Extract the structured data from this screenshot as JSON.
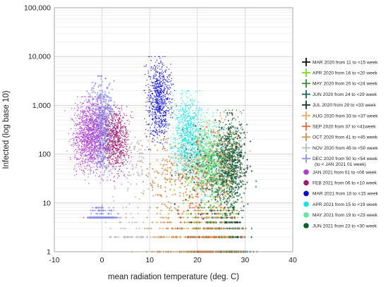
{
  "chart_data": {
    "type": "scatter",
    "title": "",
    "xlabel": "mean radiation temperature (deg. C)",
    "ylabel": "Infected (log base 10)",
    "x_scale": "linear",
    "y_scale": "log10",
    "xlim": [
      -10,
      40
    ],
    "ylim": [
      1,
      100000
    ],
    "x_ticks": [
      -10,
      0,
      10,
      20,
      30,
      40
    ],
    "x_tick_labels": [
      "-10",
      "0",
      "10",
      "20",
      "30",
      "40"
    ],
    "y_ticks": [
      1,
      10,
      100,
      1000,
      10000,
      100000
    ],
    "y_tick_labels": [
      "1",
      "10",
      "100",
      "1,000",
      "10,000",
      "100,000"
    ],
    "grid": true,
    "legend_position": "right",
    "series": [
      {
        "name": "MAR 2020 from 11 to <15 week",
        "color": "#111111",
        "marker": "plus",
        "x_range": [
          12,
          32
        ],
        "y_range": [
          1,
          500
        ],
        "approx_points": 200
      },
      {
        "name": "APR 2020 from 16 to <20 week",
        "color": "#7ddc1f",
        "marker": "plus",
        "x_range": [
          13,
          31
        ],
        "y_range": [
          1,
          300
        ],
        "approx_points": 280
      },
      {
        "name": "MAY 2020 from 20 to <24 week",
        "color": "#2e8b3a",
        "marker": "plus",
        "x_range": [
          16,
          32
        ],
        "y_range": [
          1,
          300
        ],
        "approx_points": 280
      },
      {
        "name": "JUN 2020 from 24 to <29 week",
        "color": "#0f6b52",
        "marker": "plus",
        "x_range": [
          19,
          33
        ],
        "y_range": [
          1,
          500
        ],
        "approx_points": 300
      },
      {
        "name": "JUL 2020 from 29 to <33 week",
        "color": "#123d2a",
        "marker": "plus",
        "x_range": [
          22,
          33
        ],
        "y_range": [
          1,
          700
        ],
        "approx_points": 300
      },
      {
        "name": "AUG 2020 from 33 to <37 week",
        "color": "#f5a25c",
        "marker": "plus",
        "x_range": [
          18,
          32
        ],
        "y_range": [
          1,
          700
        ],
        "approx_points": 300
      },
      {
        "name": "SEP 2020 from 37 to <41week",
        "color": "#f06a3c",
        "marker": "plus",
        "x_range": [
          13,
          28
        ],
        "y_range": [
          1,
          400
        ],
        "approx_points": 300
      },
      {
        "name": "OCT 2020 from 41 to <45 week",
        "color": "#c9924a",
        "marker": "plus",
        "x_range": [
          6,
          22
        ],
        "y_range": [
          1,
          300
        ],
        "approx_points": 280
      },
      {
        "name": "NOV 2020 from 45 to <50 week",
        "color": "#b8b8b8",
        "marker": "plus",
        "x_range": [
          -2,
          14
        ],
        "y_range": [
          2,
          500
        ],
        "approx_points": 200
      },
      {
        "name": "DEC 2020 from 50 to <54 week",
        "legend_note": "(to < JAN 2021 01 week)",
        "color": "#8f8fe8",
        "marker": "plus",
        "x_range": [
          -4,
          4
        ],
        "y_range": [
          5,
          4000
        ],
        "approx_points": 1100
      },
      {
        "name": "JAN 2021 from 01 to <06 week",
        "color": "#b03ccc",
        "marker": "dot",
        "x_range": [
          -8,
          3
        ],
        "y_range": [
          8,
          1500
        ],
        "approx_points": 1200
      },
      {
        "name": "FEB 2021 from 06 to <10 week",
        "color": "#a0186e",
        "marker": "dot",
        "x_range": [
          -1,
          7
        ],
        "y_range": [
          10,
          1000
        ],
        "approx_points": 700
      },
      {
        "name": "MAR 2021 from 10 to <15 week",
        "color": "#0a0ad2",
        "marker": "dot",
        "x_range": [
          8,
          16
        ],
        "y_range": [
          30,
          10000
        ],
        "approx_points": 750
      },
      {
        "name": "APR 2021 from 15 to <19 week",
        "color": "#19e3e3",
        "marker": "dot",
        "x_range": [
          13,
          23
        ],
        "y_range": [
          5,
          2000
        ],
        "approx_points": 900
      },
      {
        "name": "MAY 2021 from 19 to <23 week",
        "color": "#5fe8a0",
        "marker": "dot",
        "x_range": [
          18,
          27
        ],
        "y_range": [
          2,
          700
        ],
        "approx_points": 700
      },
      {
        "name": "JUN 2021 from 23 to <30 week",
        "color": "#0b5e2e",
        "marker": "dot",
        "x_range": [
          23,
          31
        ],
        "y_range": [
          1,
          800
        ],
        "approx_points": 600
      }
    ]
  }
}
